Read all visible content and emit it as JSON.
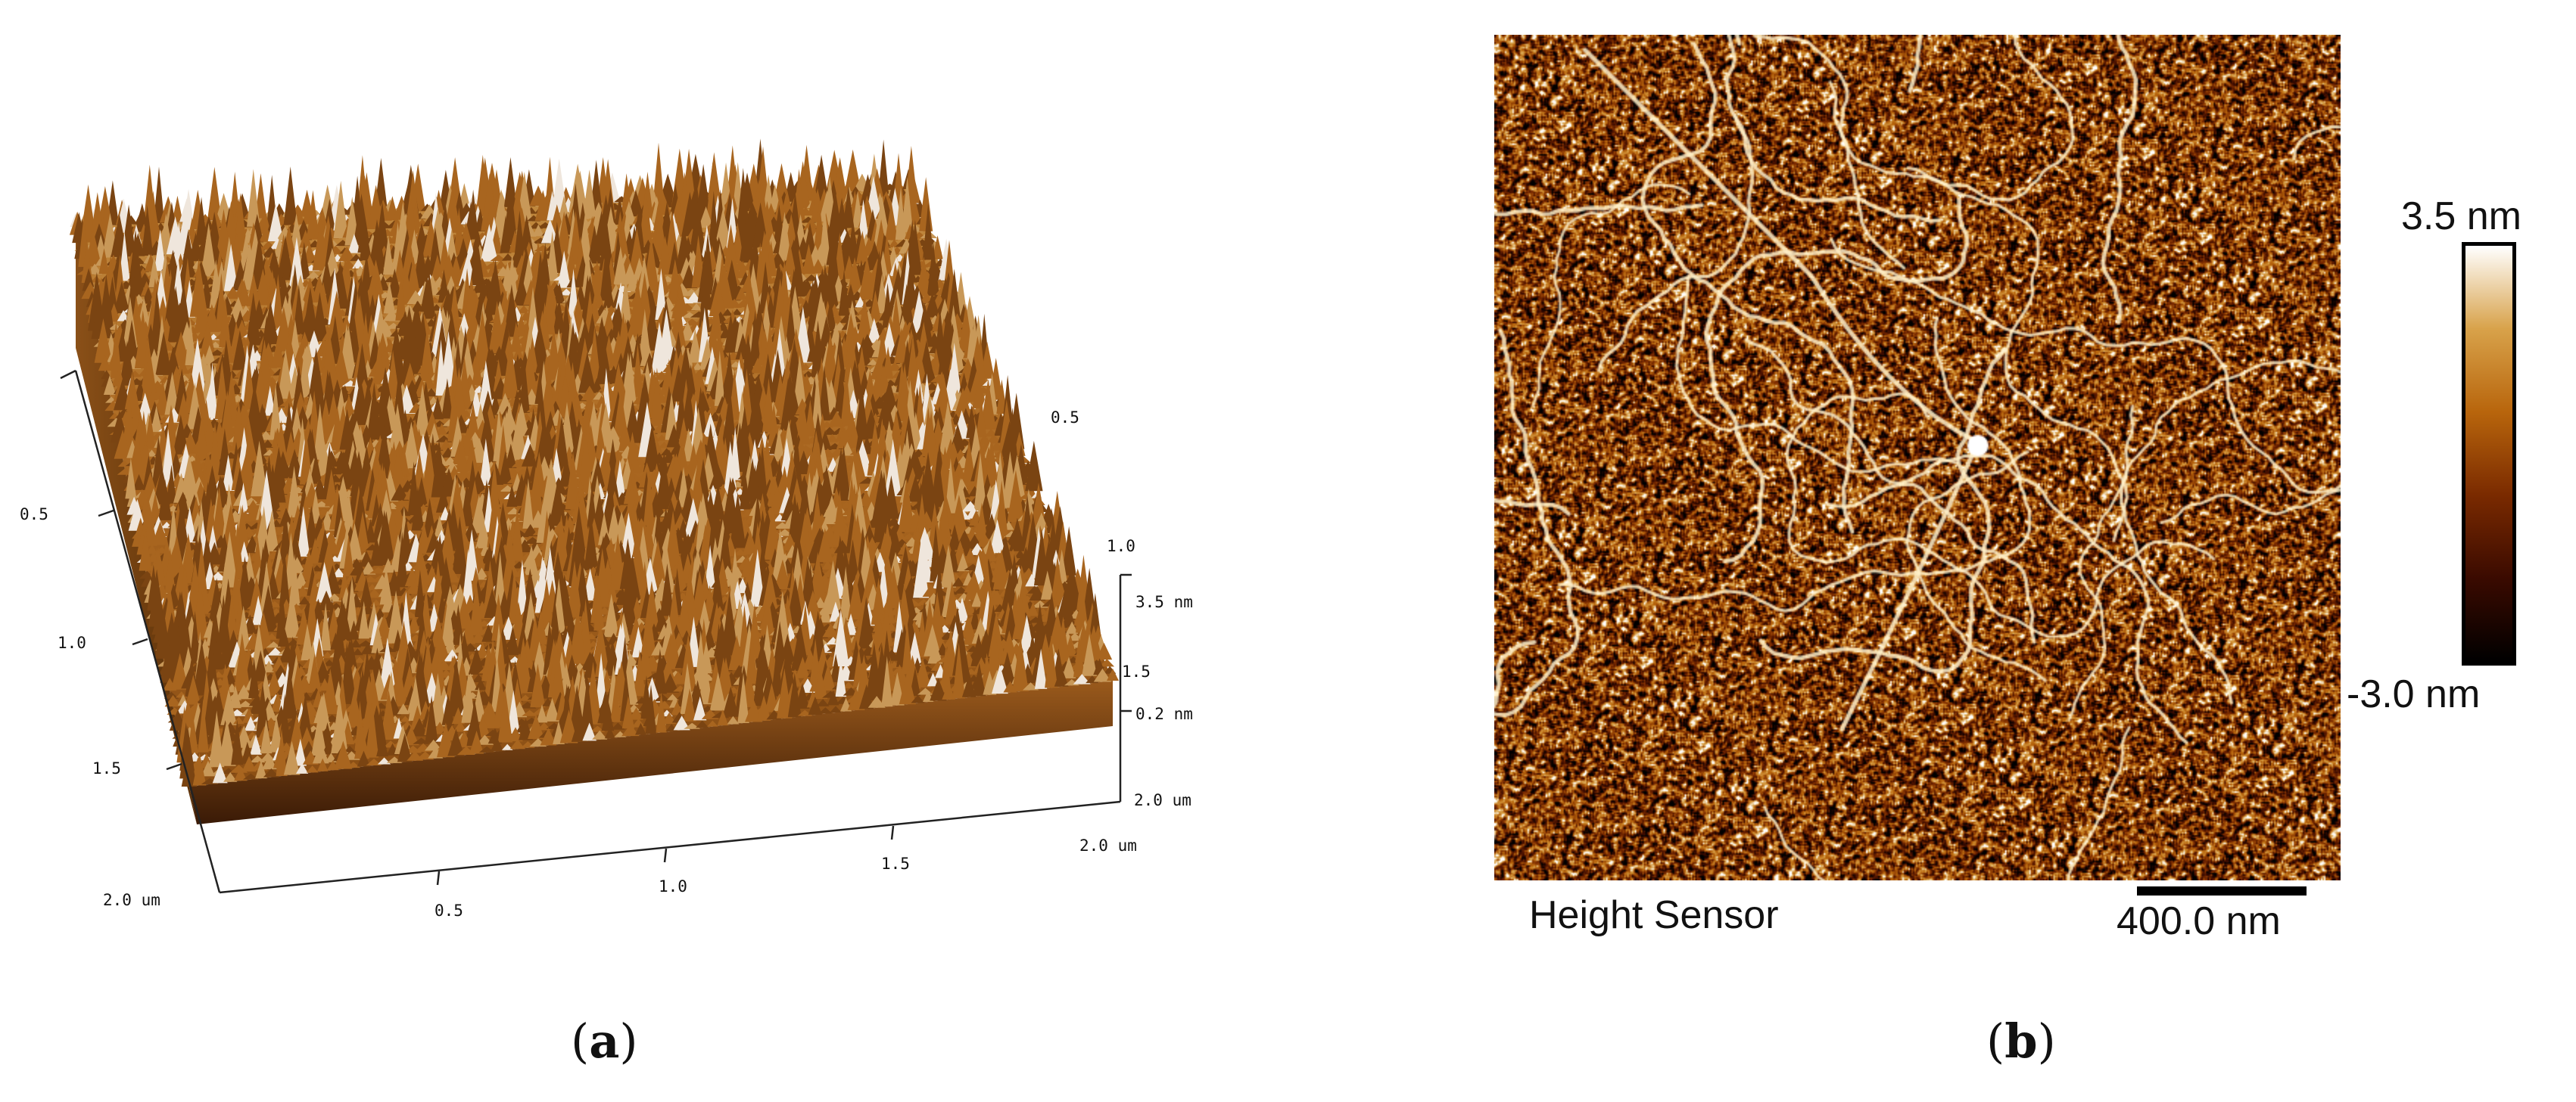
{
  "panel_a": {
    "ticks_left": [
      "0.5",
      "1.0",
      "1.5",
      "2.0 um"
    ],
    "ticks_bottom": [
      "0.5",
      "1.0",
      "1.5",
      "2.0 um"
    ],
    "ticks_right_back": [
      "0.5",
      "1.0",
      "1.5",
      "2.0 um"
    ],
    "z_axis": [
      "3.5 nm",
      "0.2 nm"
    ],
    "caption_letter": "a"
  },
  "panel_b": {
    "image_label": "Height Sensor",
    "scale_bar_label": "400.0 nm",
    "colorbar_max": "3.5 nm",
    "colorbar_min": "-3.0 nm",
    "caption_letter": "b"
  },
  "colors": {
    "colormap": [
      "#000000",
      "#3a0a00",
      "#7a2a00",
      "#b8650c",
      "#d8a24a",
      "#ffffff"
    ],
    "surface_base": "#a8651f"
  }
}
